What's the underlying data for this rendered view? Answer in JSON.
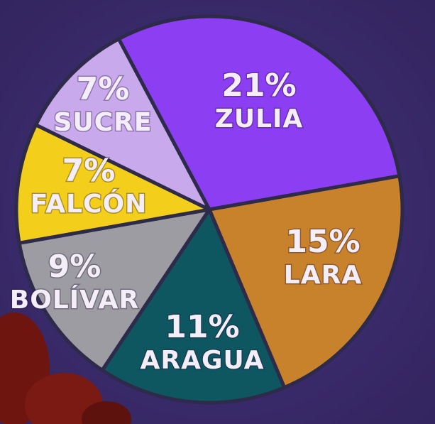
{
  "chart_data": {
    "type": "pie",
    "categories": [
      "ZULIA",
      "LARA",
      "ARAGUA",
      "BOLÍVAR",
      "FALCÓN",
      "SUCRE"
    ],
    "values": [
      21,
      15,
      11,
      9,
      7,
      7
    ],
    "value_labels": [
      "21%",
      "15%",
      "11%",
      "9%",
      "7%",
      "7%"
    ],
    "colors": [
      "#8b3ef2",
      "#c8822c",
      "#0e5660",
      "#9c9ca2",
      "#f3cf1c",
      "#c7a9ec"
    ]
  }
}
